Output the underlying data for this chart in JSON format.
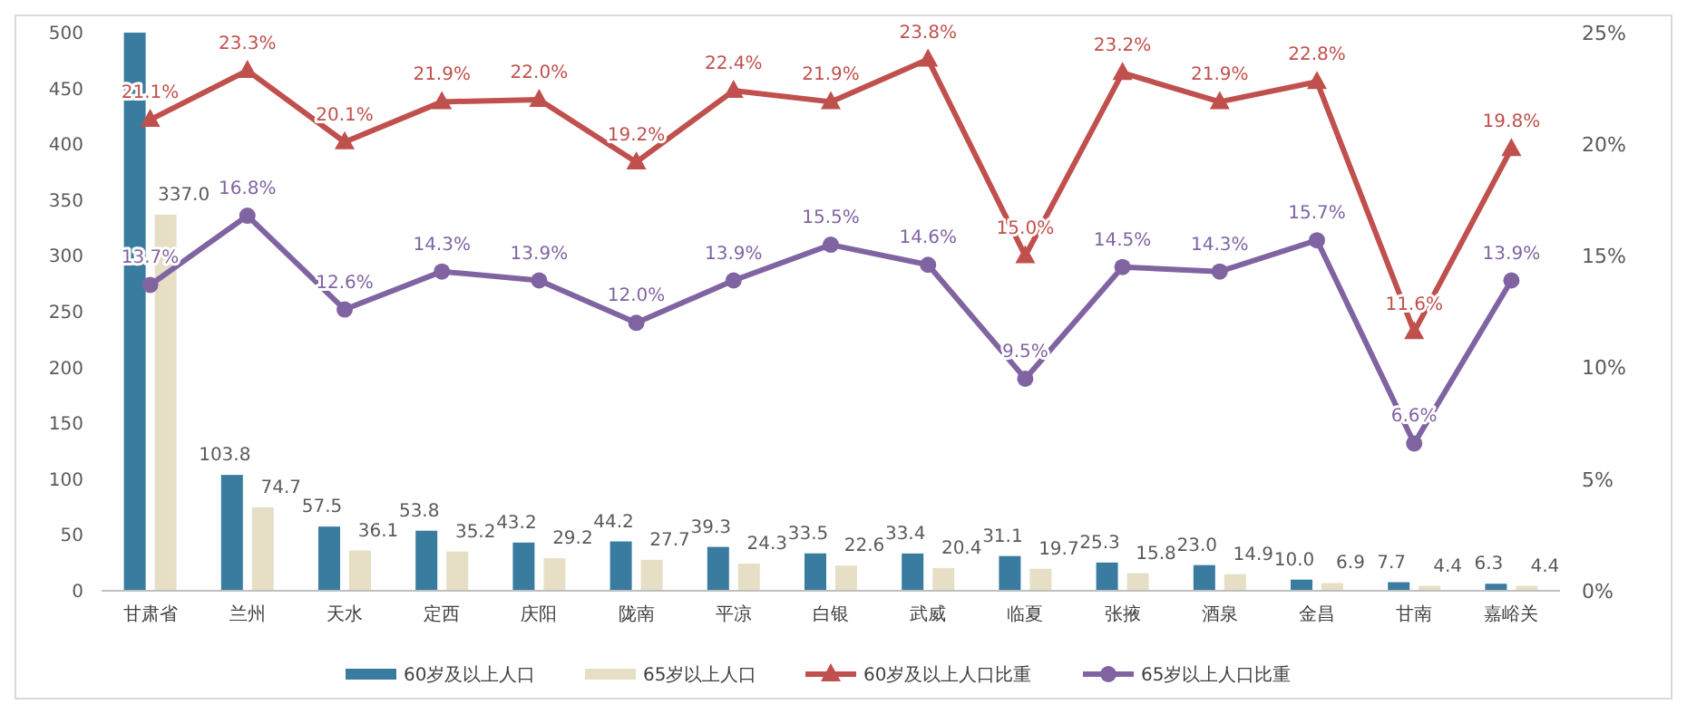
{
  "chart_data": {
    "type": "bar",
    "categories": [
      "甘肃省",
      "兰州",
      "天水",
      "定西",
      "庆阳",
      "陇南",
      "平凉",
      "白银",
      "武威",
      "临夏",
      "张掖",
      "酒泉",
      "金昌",
      "甘南",
      "嘉峪关"
    ],
    "ylim": [
      0,
      500
    ],
    "yticks": [
      0,
      50,
      100,
      150,
      200,
      250,
      300,
      350,
      400,
      450,
      500
    ],
    "y2lim": [
      0,
      25
    ],
    "y2ticks": [
      {
        "value": 0,
        "label": "0%"
      },
      {
        "value": 5,
        "label": "5%"
      },
      {
        "value": 10,
        "label": "10%"
      },
      {
        "value": 15,
        "label": "15%"
      },
      {
        "value": 20,
        "label": "20%"
      },
      {
        "value": 25,
        "label": "25%"
      }
    ],
    "grid": false,
    "legend": "bottom",
    "series": [
      {
        "name": "60岁及以上人口",
        "color": "#3a7ca0",
        "values": [
          500,
          103.8,
          57.5,
          53.8,
          43.2,
          44.2,
          39.3,
          33.5,
          33.4,
          31.1,
          25.3,
          23.0,
          10.0,
          7.7,
          6.3
        ],
        "value_labels": [
          null,
          "103.8",
          "57.5",
          "53.8",
          "43.2",
          "44.2",
          "39.3",
          "33.5",
          "33.4",
          "31.1",
          "25.3",
          "23.0",
          "10.0",
          "7.7",
          "6.3"
        ]
      },
      {
        "name": "65岁以上人口",
        "color": "#e6dfc6",
        "values": [
          337.0,
          74.7,
          36.1,
          35.2,
          29.2,
          27.7,
          24.3,
          22.6,
          20.4,
          19.7,
          15.8,
          14.9,
          6.9,
          4.4,
          4.4
        ],
        "value_labels": [
          "337.0",
          "74.7",
          "36.1",
          "35.2",
          "29.2",
          "27.7",
          "24.3",
          "22.6",
          "20.4",
          "19.7",
          "15.8",
          "14.9",
          "6.9",
          "4.4",
          "4.4"
        ]
      },
      {
        "name": "60岁及以上人口比重",
        "type": "line",
        "axis": "y2",
        "marker": "triangle",
        "color": "#c0504d",
        "values": [
          21.1,
          23.3,
          20.1,
          21.9,
          22.0,
          19.2,
          22.4,
          21.9,
          23.8,
          15.0,
          23.2,
          21.9,
          22.8,
          11.6,
          19.8
        ],
        "value_labels": [
          "21.1%",
          "23.3%",
          "20.1%",
          "21.9%",
          "22.0%",
          "19.2%",
          "22.4%",
          "21.9%",
          "23.8%",
          "15.0%",
          "23.2%",
          "21.9%",
          "22.8%",
          "11.6%",
          "19.8%"
        ]
      },
      {
        "name": "65岁以上人口比重",
        "type": "line",
        "axis": "y2",
        "marker": "circle",
        "color": "#8064a2",
        "values": [
          13.7,
          16.8,
          12.6,
          14.3,
          13.9,
          12.0,
          13.9,
          15.5,
          14.6,
          9.5,
          14.5,
          14.3,
          15.7,
          6.6,
          13.9
        ],
        "value_labels": [
          "13.7%",
          "16.8%",
          "12.6%",
          "14.3%",
          "13.9%",
          "12.0%",
          "13.9%",
          "15.5%",
          "14.6%",
          "9.5%",
          "14.5%",
          "14.3%",
          "15.7%",
          "6.6%",
          "13.9%"
        ]
      }
    ]
  }
}
